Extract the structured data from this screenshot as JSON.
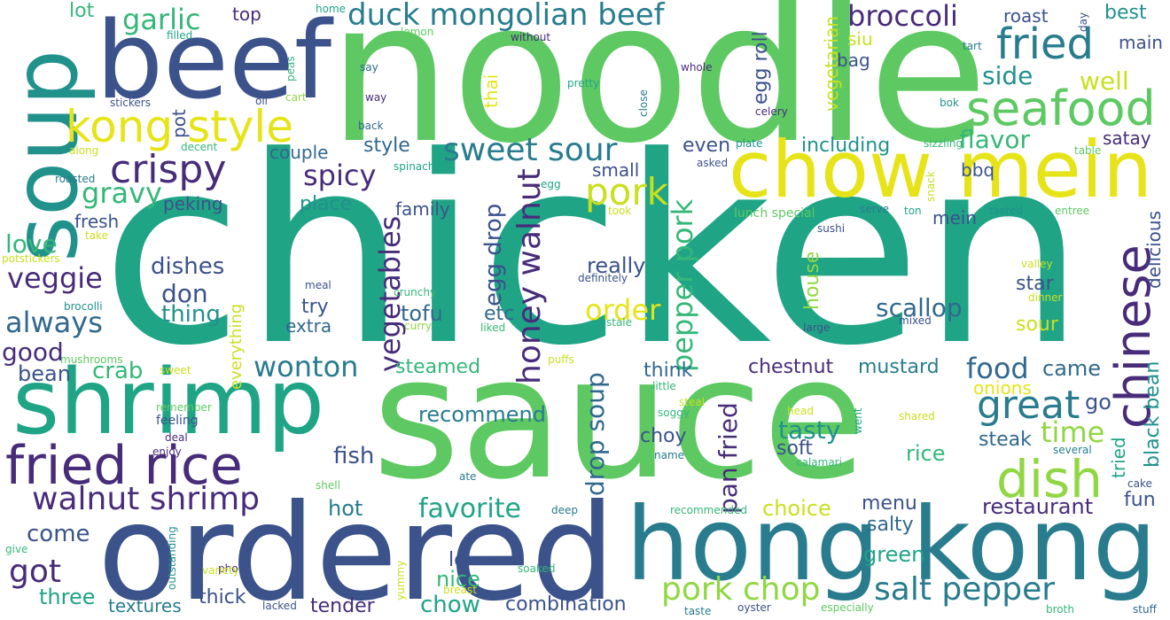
{
  "palette": {
    "dark_purple": "#472c7a",
    "indigo": "#3b528b",
    "blue": "#31688e",
    "teal_blue": "#287c8e",
    "teal": "#21918c",
    "green_teal": "#20a486",
    "green": "#35b779",
    "light_green": "#5ec962",
    "lime": "#90d743",
    "yellow": "#c8e020",
    "bright_yellow": "#e6e419",
    "background": "#ffffff"
  },
  "words": [
    {
      "text": "chicken",
      "color": "#20a486"
    },
    {
      "text": "noodle",
      "color": "#5ec962"
    },
    {
      "text": "sauce",
      "color": "#5ec962"
    },
    {
      "text": "soup",
      "color": "#21918c"
    },
    {
      "text": "beef",
      "color": "#3b528b"
    },
    {
      "text": "ordered",
      "color": "#3b528b"
    },
    {
      "text": "hong kong",
      "color": "#287c8e"
    },
    {
      "text": "chow mein",
      "color": "#e6e419"
    },
    {
      "text": "shrimp",
      "color": "#20a486"
    },
    {
      "text": "fried rice",
      "color": "#472c7a"
    },
    {
      "text": "seafood",
      "color": "#5ec962"
    },
    {
      "text": "fried",
      "color": "#287c8e"
    },
    {
      "text": "chinese",
      "color": "#472c7a"
    },
    {
      "text": "dish",
      "color": "#90d743"
    },
    {
      "text": "kong style",
      "color": "#e6e419"
    },
    {
      "text": "crispy",
      "color": "#472c7a"
    },
    {
      "text": "great",
      "color": "#287c8e"
    },
    {
      "text": "salt pepper",
      "color": "#287c8e"
    },
    {
      "text": "pork chop",
      "color": "#90d743"
    },
    {
      "text": "walnut shrimp",
      "color": "#472c7a"
    },
    {
      "text": "duck mongolian beef",
      "color": "#287c8e"
    },
    {
      "text": "sweet sour",
      "color": "#287c8e"
    },
    {
      "text": "pork",
      "color": "#c8e020"
    },
    {
      "text": "garlic",
      "color": "#35b779"
    },
    {
      "text": "broccoli",
      "color": "#472c7a"
    },
    {
      "text": "gravy",
      "color": "#35b779"
    },
    {
      "text": "spicy",
      "color": "#472c7a"
    },
    {
      "text": "veggie",
      "color": "#472c7a"
    },
    {
      "text": "always",
      "color": "#31688e"
    },
    {
      "text": "wonton",
      "color": "#287c8e"
    },
    {
      "text": "vegetables",
      "color": "#472c7a"
    },
    {
      "text": "honey walnut",
      "color": "#472c7a"
    },
    {
      "text": "pepper pork",
      "color": "#35b779"
    },
    {
      "text": "egg drop",
      "color": "#3b528b"
    },
    {
      "text": "drop soup",
      "color": "#31688e"
    },
    {
      "text": "favorite",
      "color": "#20a486"
    },
    {
      "text": "order",
      "color": "#e6e419"
    },
    {
      "text": "food",
      "color": "#31688e"
    },
    {
      "text": "time",
      "color": "#90d743"
    },
    {
      "text": "got",
      "color": "#472c7a"
    },
    {
      "text": "good",
      "color": "#472c7a"
    },
    {
      "text": "scallop",
      "color": "#31688e"
    },
    {
      "text": "tasty",
      "color": "#21918c"
    },
    {
      "text": "flavor",
      "color": "#35b779"
    },
    {
      "text": "side",
      "color": "#21918c"
    },
    {
      "text": "well",
      "color": "#c8e020"
    },
    {
      "text": "satay",
      "color": "#472c7a"
    },
    {
      "text": "love",
      "color": "#35b779"
    },
    {
      "text": "dishes",
      "color": "#3b528b"
    },
    {
      "text": "don",
      "color": "#3b528b"
    },
    {
      "text": "thing",
      "color": "#21918c"
    },
    {
      "text": "crab",
      "color": "#35b779"
    },
    {
      "text": "bean",
      "color": "#3b528b"
    },
    {
      "text": "fish",
      "color": "#3b528b"
    },
    {
      "text": "hot",
      "color": "#287c8e"
    },
    {
      "text": "come",
      "color": "#3b528b"
    },
    {
      "text": "three",
      "color": "#20a486"
    },
    {
      "text": "textures",
      "color": "#287c8e"
    },
    {
      "text": "thick",
      "color": "#3b528b"
    },
    {
      "text": "tender",
      "color": "#472c7a"
    },
    {
      "text": "chow",
      "color": "#20a486"
    },
    {
      "text": "combination",
      "color": "#3b528b"
    },
    {
      "text": "nice",
      "color": "#35b779"
    },
    {
      "text": "lo",
      "color": "#3b528b"
    },
    {
      "text": "recommend",
      "color": "#287c8e"
    },
    {
      "text": "steamed",
      "color": "#35b779"
    },
    {
      "text": "tofu",
      "color": "#31688e"
    },
    {
      "text": "etc",
      "color": "#31688e"
    },
    {
      "text": "choy",
      "color": "#3b528b"
    },
    {
      "text": "pan fried",
      "color": "#472c7a"
    },
    {
      "text": "soft",
      "color": "#3b528b"
    },
    {
      "text": "choice",
      "color": "#c8e020"
    },
    {
      "text": "menu",
      "color": "#3b528b"
    },
    {
      "text": "salty",
      "color": "#31688e"
    },
    {
      "text": "green",
      "color": "#20a486"
    },
    {
      "text": "restaurant",
      "color": "#472c7a"
    },
    {
      "text": "fun",
      "color": "#3b528b"
    },
    {
      "text": "steak",
      "color": "#31688e"
    },
    {
      "text": "rice",
      "color": "#35b779"
    },
    {
      "text": "go",
      "color": "#3b528b"
    },
    {
      "text": "came",
      "color": "#31688e"
    },
    {
      "text": "onions",
      "color": "#e6e419"
    },
    {
      "text": "mustard",
      "color": "#287c8e"
    },
    {
      "text": "chestnut",
      "color": "#472c7a"
    },
    {
      "text": "think",
      "color": "#31688e"
    },
    {
      "text": "sour",
      "color": "#c8e020"
    },
    {
      "text": "star",
      "color": "#3b528b"
    },
    {
      "text": "house",
      "color": "#90d743"
    },
    {
      "text": "including",
      "color": "#21918c"
    },
    {
      "text": "even",
      "color": "#3b528b"
    },
    {
      "text": "egg roll",
      "color": "#3b528b"
    },
    {
      "text": "vegetarian",
      "color": "#c8e020"
    },
    {
      "text": "siu",
      "color": "#c8e020"
    },
    {
      "text": "bag",
      "color": "#3b528b"
    },
    {
      "text": "roast",
      "color": "#3b528b"
    },
    {
      "text": "best",
      "color": "#21918c"
    },
    {
      "text": "main",
      "color": "#3b528b"
    },
    {
      "text": "bbq",
      "color": "#3b528b"
    },
    {
      "text": "mein",
      "color": "#3b528b"
    },
    {
      "text": "black bean",
      "color": "#21918c"
    },
    {
      "text": "delicious",
      "color": "#3b528b"
    },
    {
      "text": "tried",
      "color": "#20a486"
    },
    {
      "text": "really",
      "color": "#3b528b"
    },
    {
      "text": "small",
      "color": "#3b528b"
    },
    {
      "text": "family",
      "color": "#3b528b"
    },
    {
      "text": "place",
      "color": "#21918c"
    },
    {
      "text": "couple",
      "color": "#31688e"
    },
    {
      "text": "style",
      "color": "#31688e"
    },
    {
      "text": "try",
      "color": "#3b528b"
    },
    {
      "text": "extra",
      "color": "#31688e"
    },
    {
      "text": "peking",
      "color": "#3b528b"
    },
    {
      "text": "fresh",
      "color": "#3b528b"
    },
    {
      "text": "lot",
      "color": "#35b779"
    },
    {
      "text": "top",
      "color": "#472c7a"
    },
    {
      "text": "pot",
      "color": "#3b528b"
    },
    {
      "text": "thai",
      "color": "#e6e419"
    },
    {
      "text": "everything",
      "color": "#c8e020"
    },
    {
      "text": "mushrooms",
      "color": "#5ec962"
    },
    {
      "text": "brocolli",
      "color": "#21918c"
    },
    {
      "text": "potstickers",
      "color": "#c8e020"
    },
    {
      "text": "take",
      "color": "#c8e020"
    },
    {
      "text": "roasted",
      "color": "#287c8e"
    },
    {
      "text": "along",
      "color": "#c8e020"
    },
    {
      "text": "decent",
      "color": "#35b779"
    },
    {
      "text": "stickers",
      "color": "#3b528b"
    },
    {
      "text": "oil",
      "color": "#3b528b"
    },
    {
      "text": "peas",
      "color": "#35b779"
    },
    {
      "text": "cart",
      "color": "#90d743"
    },
    {
      "text": "filled",
      "color": "#20a486"
    },
    {
      "text": "home",
      "color": "#20a486"
    },
    {
      "text": "lemon",
      "color": "#5ec962"
    },
    {
      "text": "without",
      "color": "#472c7a"
    },
    {
      "text": "say",
      "color": "#31688e"
    },
    {
      "text": "way",
      "color": "#472c7a"
    },
    {
      "text": "back",
      "color": "#31688e"
    },
    {
      "text": "pretty",
      "color": "#20a486"
    },
    {
      "text": "close",
      "color": "#287c8e"
    },
    {
      "text": "whole",
      "color": "#472c7a"
    },
    {
      "text": "celery",
      "color": "#472c7a"
    },
    {
      "text": "day",
      "color": "#3b528b"
    },
    {
      "text": "tart",
      "color": "#287c8e"
    },
    {
      "text": "bok",
      "color": "#21918c"
    },
    {
      "text": "plate",
      "color": "#21918c"
    },
    {
      "text": "asked",
      "color": "#3b528b"
    },
    {
      "text": "sizzling",
      "color": "#35b779"
    },
    {
      "text": "table",
      "color": "#5ec962"
    },
    {
      "text": "snack",
      "color": "#c8e020"
    },
    {
      "text": "spinach",
      "color": "#20a486"
    },
    {
      "text": "egg",
      "color": "#20a486"
    },
    {
      "text": "took",
      "color": "#c8e020"
    },
    {
      "text": "lunch special",
      "color": "#5ec962"
    },
    {
      "text": "serve",
      "color": "#287c8e"
    },
    {
      "text": "ton",
      "color": "#20a486"
    },
    {
      "text": "tasted",
      "color": "#21918c"
    },
    {
      "text": "entree",
      "color": "#5ec962"
    },
    {
      "text": "sushi",
      "color": "#3b528b"
    },
    {
      "text": "valley",
      "color": "#c8e020"
    },
    {
      "text": "dinner",
      "color": "#c8e020"
    },
    {
      "text": "mixed",
      "color": "#3b528b"
    },
    {
      "text": "large",
      "color": "#3b528b"
    },
    {
      "text": "meal",
      "color": "#3b528b"
    },
    {
      "text": "definitely",
      "color": "#3b528b"
    },
    {
      "text": "crunchy",
      "color": "#35b779"
    },
    {
      "text": "curry",
      "color": "#90d743"
    },
    {
      "text": "liked",
      "color": "#35b779"
    },
    {
      "text": "stale",
      "color": "#35b779"
    },
    {
      "text": "puffs",
      "color": "#c8e020"
    },
    {
      "text": "sweet",
      "color": "#c8e020"
    },
    {
      "text": "little",
      "color": "#35b779"
    },
    {
      "text": "steal",
      "color": "#c8e020"
    },
    {
      "text": "soggy",
      "color": "#35b779"
    },
    {
      "text": "head",
      "color": "#c8e020"
    },
    {
      "text": "shared",
      "color": "#c8e020"
    },
    {
      "text": "went",
      "color": "#20a486"
    },
    {
      "text": "remember",
      "color": "#5ec962"
    },
    {
      "text": "feeling",
      "color": "#3b528b"
    },
    {
      "text": "deal",
      "color": "#472c7a"
    },
    {
      "text": "enjoy",
      "color": "#472c7a"
    },
    {
      "text": "name",
      "color": "#287c8e"
    },
    {
      "text": "calamari",
      "color": "#35b779"
    },
    {
      "text": "several",
      "color": "#287c8e"
    },
    {
      "text": "cake",
      "color": "#3b528b"
    },
    {
      "text": "ate",
      "color": "#287c8e"
    },
    {
      "text": "shell",
      "color": "#5ec962"
    },
    {
      "text": "deep",
      "color": "#287c8e"
    },
    {
      "text": "recommended",
      "color": "#35b779"
    },
    {
      "text": "give",
      "color": "#35b779"
    },
    {
      "text": "pho",
      "color": "#472c7a"
    },
    {
      "text": "outstanding",
      "color": "#21918c"
    },
    {
      "text": "variety",
      "color": "#c8e020"
    },
    {
      "text": "yummy",
      "color": "#c8e020"
    },
    {
      "text": "breast",
      "color": "#c8e020"
    },
    {
      "text": "soaked",
      "color": "#35b779"
    },
    {
      "text": "lacked",
      "color": "#3b528b"
    },
    {
      "text": "taste",
      "color": "#287c8e"
    },
    {
      "text": "oyster",
      "color": "#3b528b"
    },
    {
      "text": "especially",
      "color": "#5ec962"
    },
    {
      "text": "broth",
      "color": "#35b779"
    },
    {
      "text": "stuff",
      "color": "#31688e"
    }
  ]
}
